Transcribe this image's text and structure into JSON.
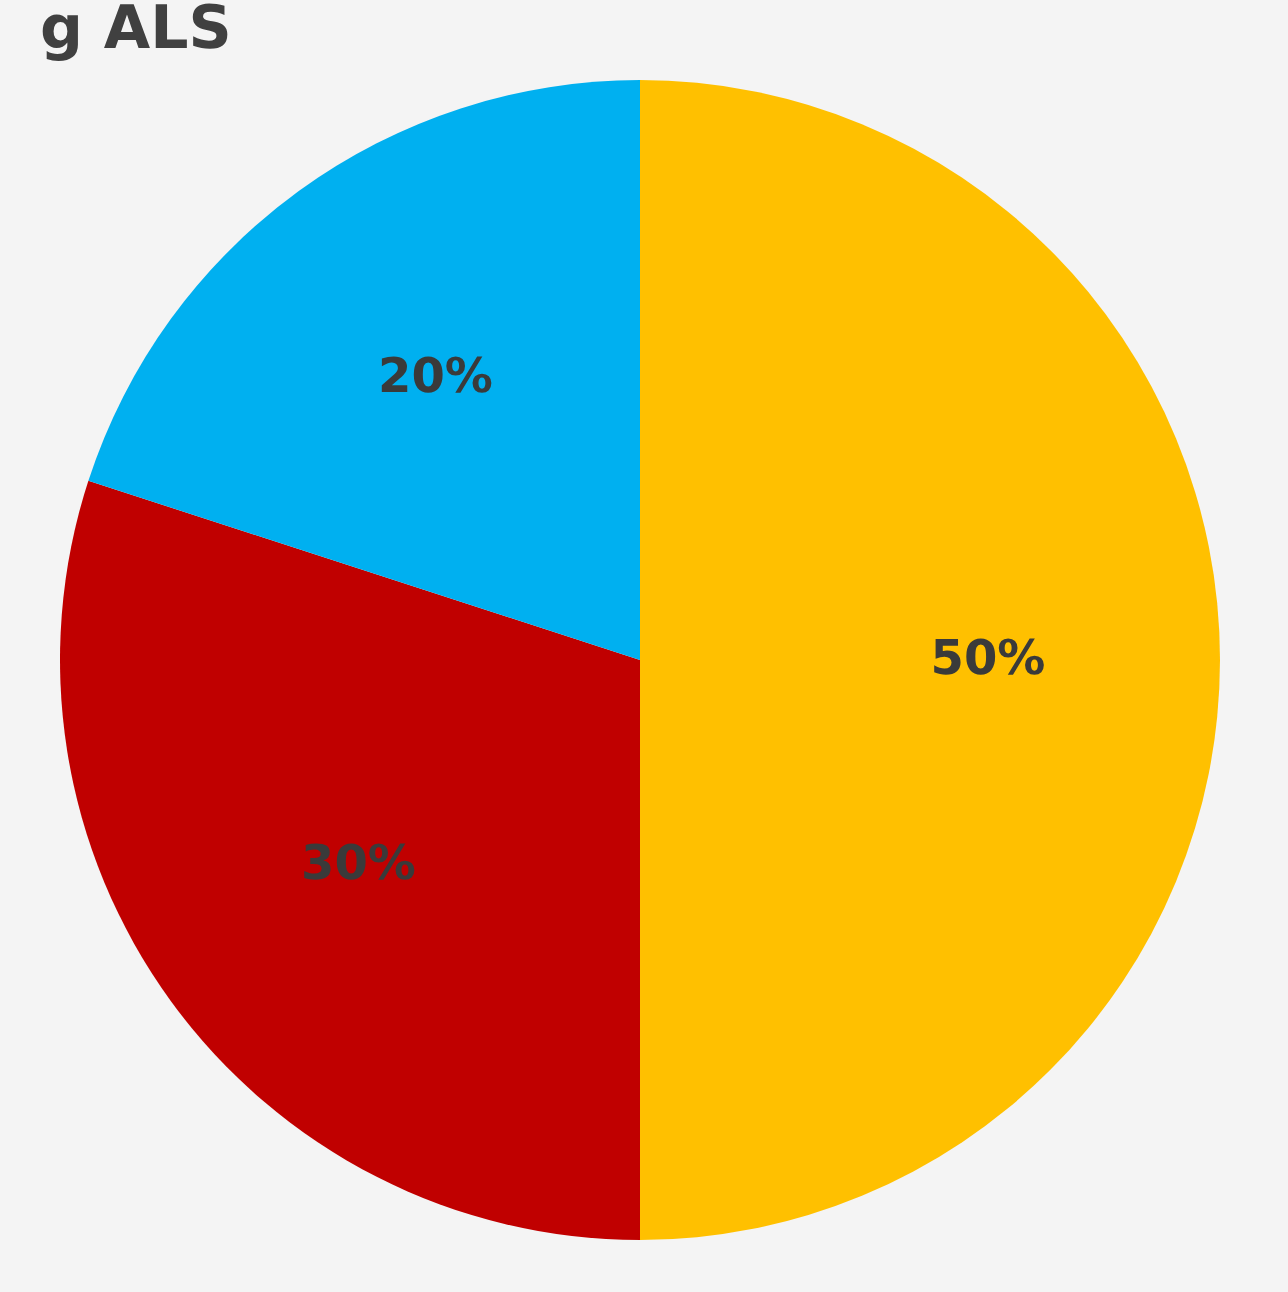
{
  "chart_data": {
    "type": "pie",
    "title": "g ALS",
    "categories": [
      null,
      null,
      null
    ],
    "values": [
      50,
      30,
      20
    ],
    "colors": [
      "#ffc000",
      "#c00000",
      "#00b0f0"
    ],
    "value_labels": [
      "50%",
      "30%",
      "20%"
    ],
    "legend": false
  }
}
